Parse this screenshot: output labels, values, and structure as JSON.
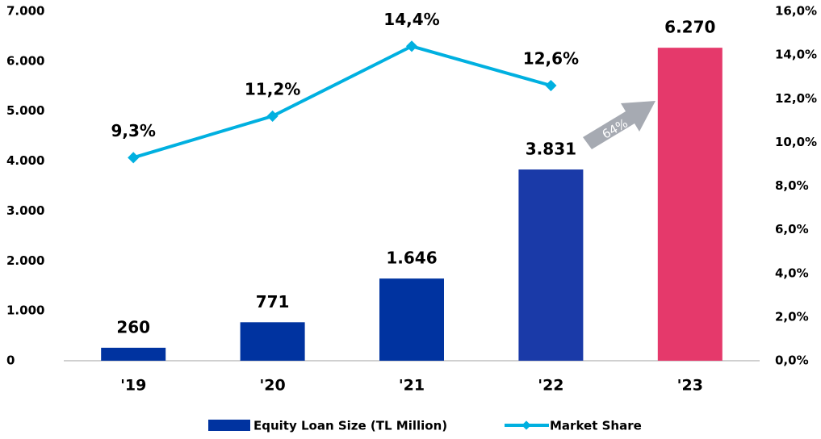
{
  "chart_data": {
    "type": "combo",
    "categories": [
      "'19",
      "'20",
      "'21",
      "'22",
      "'23"
    ],
    "series": [
      {
        "name": "Equity Loan Size (TL Million)",
        "type": "bar",
        "axis": "y",
        "color": "#0033a0",
        "colors": [
          "#0033a0",
          "#0033a0",
          "#0033a0",
          "#1a3aa8",
          "#e5396b"
        ],
        "values": [
          260,
          771,
          1646,
          3831,
          6270
        ],
        "value_labels": [
          "260",
          "771",
          "1.646",
          "3.831",
          "6.270"
        ]
      },
      {
        "name": "Market Share",
        "type": "line",
        "axis": "y2",
        "color": "#00b0e0",
        "values": [
          9.3,
          11.2,
          14.4,
          12.6,
          null
        ],
        "value_labels": [
          "9,3%",
          "11,2%",
          "14,4%",
          "12,6%",
          null
        ]
      }
    ],
    "ylim": [
      0,
      7000
    ],
    "yticks": [
      0,
      {
        "value": 1000,
        "label": "1.000"
      },
      {
        "value": 2000,
        "label": "2.000"
      },
      {
        "value": 3000,
        "label": "3.000"
      },
      {
        "value": 4000,
        "label": "4.000"
      },
      {
        "value": 5000,
        "label": "5.000"
      },
      {
        "value": 6000,
        "label": "6.000"
      },
      {
        "value": 7000,
        "label": "7.000"
      }
    ],
    "y2lim": [
      0,
      16
    ],
    "y2ticks": [
      {
        "value": 0,
        "label": "0,0%"
      },
      {
        "value": 2,
        "label": "2,0%"
      },
      {
        "value": 4,
        "label": "4,0%"
      },
      {
        "value": 6,
        "label": "6,0%"
      },
      {
        "value": 8,
        "label": "8,0%"
      },
      {
        "value": 10,
        "label": "10,0%"
      },
      {
        "value": 12,
        "label": "12,0%"
      },
      {
        "value": 14,
        "label": "14,0%"
      },
      {
        "value": 16,
        "label": "16,0%"
      }
    ],
    "grid": false,
    "legend": "bottom",
    "annotations": [
      {
        "text": "64%"
      }
    ]
  }
}
